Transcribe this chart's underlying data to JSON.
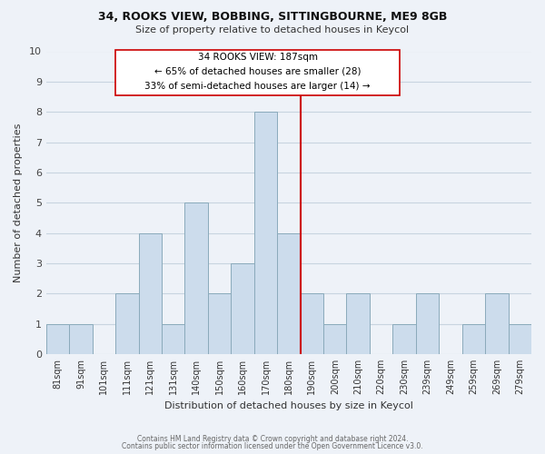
{
  "title1": "34, ROOKS VIEW, BOBBING, SITTINGBOURNE, ME9 8GB",
  "title2": "Size of property relative to detached houses in Keycol",
  "xlabel": "Distribution of detached houses by size in Keycol",
  "ylabel": "Number of detached properties",
  "bar_labels": [
    "81sqm",
    "91sqm",
    "101sqm",
    "111sqm",
    "121sqm",
    "131sqm",
    "140sqm",
    "150sqm",
    "160sqm",
    "170sqm",
    "180sqm",
    "190sqm",
    "200sqm",
    "210sqm",
    "220sqm",
    "230sqm",
    "239sqm",
    "249sqm",
    "259sqm",
    "269sqm",
    "279sqm"
  ],
  "bar_values": [
    1,
    1,
    0,
    2,
    4,
    1,
    5,
    2,
    3,
    8,
    4,
    2,
    1,
    2,
    0,
    1,
    2,
    0,
    1,
    2,
    1
  ],
  "bar_color": "#ccdcec",
  "bar_edge_color": "#8aaabb",
  "ref_line_color": "#cc0000",
  "annotation_box_edge": "#cc0000",
  "annotation_line1": "34 ROOKS VIEW: 187sqm",
  "annotation_line2": "← 65% of detached houses are smaller (28)",
  "annotation_line3": "33% of semi-detached houses are larger (14) →",
  "ylim": [
    0,
    10
  ],
  "yticks": [
    0,
    1,
    2,
    3,
    4,
    5,
    6,
    7,
    8,
    9,
    10
  ],
  "footer1": "Contains HM Land Registry data © Crown copyright and database right 2024.",
  "footer2": "Contains public sector information licensed under the Open Government Licence v3.0.",
  "grid_color": "#c8d4e0",
  "background_color": "#eef2f8"
}
